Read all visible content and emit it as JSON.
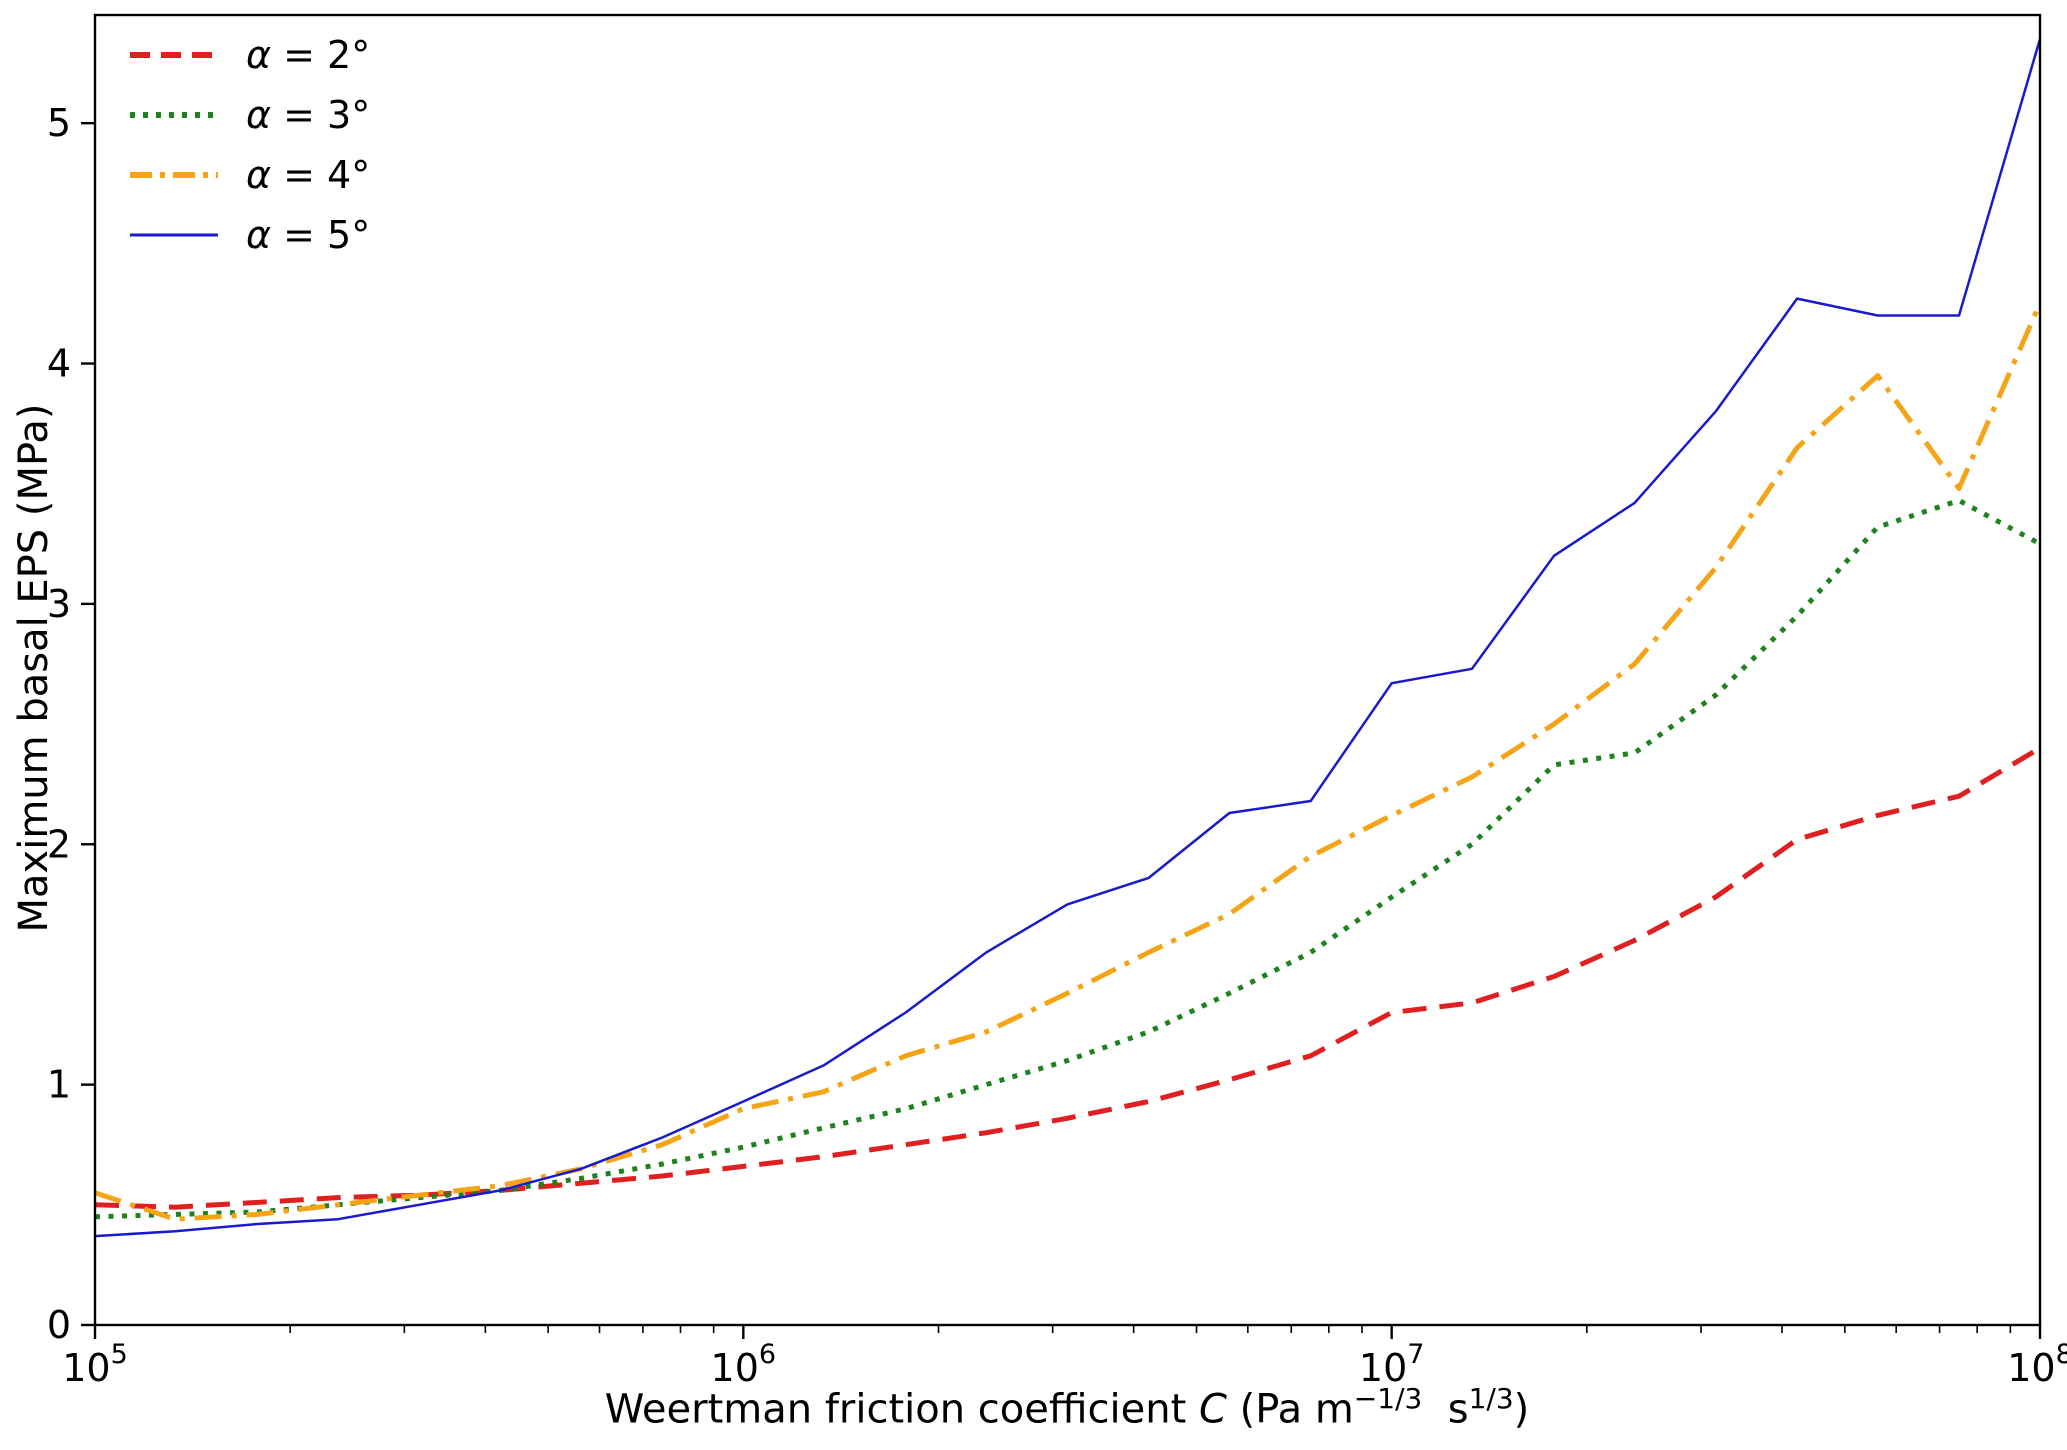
{
  "figure": {
    "background": "#ffffff",
    "ylabel": "Maximum basal EPS (MPa)",
    "xlabel": {
      "prefix": "Weertman friction coefficient ",
      "variable": "C",
      "unit_open": " (Pa m",
      "sup1": "−1/3",
      "unit_mid": "  s",
      "sup2": "1/3",
      "unit_close": ")"
    }
  },
  "chart_data": {
    "type": "line",
    "title": "",
    "xlabel": "Weertman friction coefficient C (Pa m^-1/3 s^1/3)",
    "ylabel": "Maximum basal EPS (MPa)",
    "xscale": "log",
    "xlim": [
      100000,
      100000000
    ],
    "ylim": [
      0,
      5.45
    ],
    "x_tick_exponents": [
      5,
      6,
      7,
      8
    ],
    "y_ticks": [
      0,
      1,
      2,
      3,
      4,
      5
    ],
    "grid": false,
    "legend_position": "upper-left",
    "axis_color": "#000000",
    "x": [
      100000,
      133000,
      178000,
      237000,
      316000,
      422000,
      562000,
      750000,
      1000000,
      1330000,
      1780000,
      2370000,
      3160000,
      4220000,
      5620000,
      7500000,
      10000000,
      13300000,
      17800000,
      23700000,
      31600000,
      42200000,
      56200000,
      75000000,
      100000000
    ],
    "series": [
      {
        "name": "α = 2°",
        "symbol": "α",
        "rest": " = 2°",
        "color": "#e02020",
        "linestyle": "dashed",
        "linewidth": 5,
        "values": [
          0.5,
          0.49,
          0.51,
          0.53,
          0.54,
          0.56,
          0.59,
          0.62,
          0.66,
          0.7,
          0.75,
          0.8,
          0.86,
          0.93,
          1.02,
          1.12,
          1.3,
          1.34,
          1.45,
          1.6,
          1.78,
          2.02,
          2.12,
          2.2,
          2.4
        ]
      },
      {
        "name": "α = 3°",
        "symbol": "α",
        "rest": " = 3°",
        "color": "#1e821e",
        "linestyle": "dotted",
        "linewidth": 5,
        "values": [
          0.45,
          0.46,
          0.47,
          0.5,
          0.53,
          0.56,
          0.61,
          0.67,
          0.74,
          0.82,
          0.9,
          1.0,
          1.1,
          1.22,
          1.38,
          1.55,
          1.78,
          2.0,
          2.33,
          2.38,
          2.62,
          2.95,
          3.32,
          3.43,
          3.25
        ]
      },
      {
        "name": "α = 4°",
        "symbol": "α",
        "rest": " = 4°",
        "color": "#f5a418",
        "linestyle": "dashdot",
        "linewidth": 5,
        "values": [
          0.55,
          0.44,
          0.46,
          0.5,
          0.54,
          0.58,
          0.65,
          0.75,
          0.9,
          0.97,
          1.12,
          1.22,
          1.38,
          1.55,
          1.71,
          1.95,
          2.12,
          2.28,
          2.5,
          2.75,
          3.15,
          3.65,
          3.95,
          3.48,
          4.25
        ]
      },
      {
        "name": "α = 5°",
        "symbol": "α",
        "rest": " = 5°",
        "color": "#1a1acd",
        "linestyle": "solid",
        "linewidth": 2.5,
        "values": [
          0.37,
          0.39,
          0.42,
          0.44,
          0.5,
          0.56,
          0.65,
          0.78,
          0.93,
          1.08,
          1.3,
          1.55,
          1.75,
          1.86,
          2.13,
          2.18,
          2.67,
          2.73,
          3.2,
          3.42,
          3.8,
          4.27,
          4.2,
          4.2,
          5.35
        ]
      }
    ]
  }
}
